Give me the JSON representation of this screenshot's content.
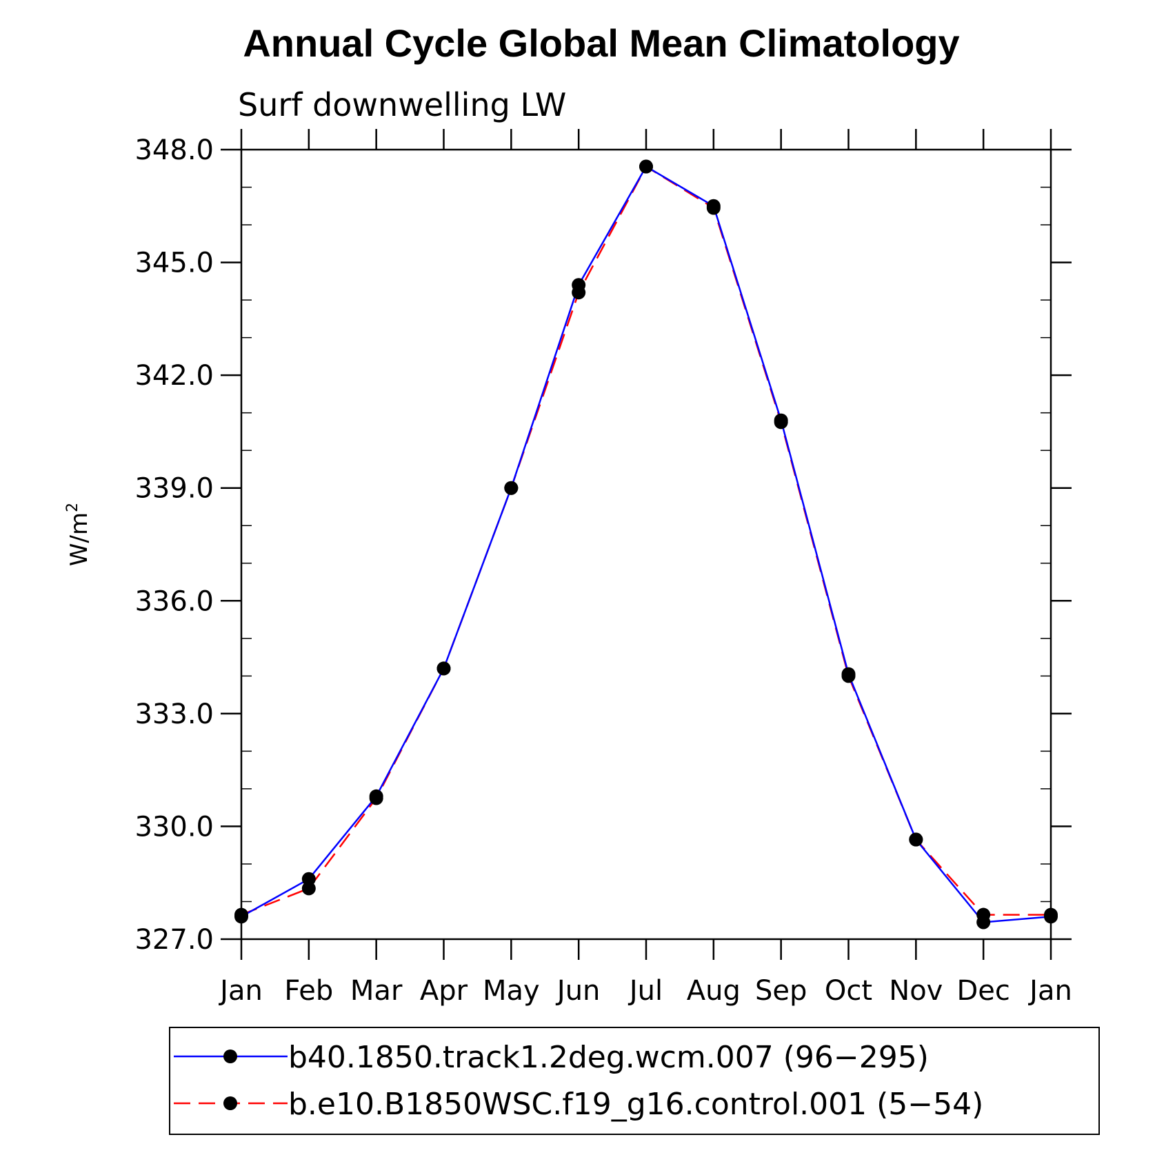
{
  "chart_data": {
    "type": "line",
    "title": "Annual Cycle Global Mean Climatology",
    "subtitle": "Surf downwelling LW",
    "ylabel": "W/m",
    "ylabel_superscript": "2",
    "xlabel": "",
    "categories": [
      "Jan",
      "Feb",
      "Mar",
      "Apr",
      "May",
      "Jun",
      "Jul",
      "Aug",
      "Sep",
      "Oct",
      "Nov",
      "Dec",
      "Jan"
    ],
    "ylim": [
      327.0,
      348.0
    ],
    "yticks": [
      "327.0",
      "330.0",
      "333.0",
      "336.0",
      "339.0",
      "342.0",
      "345.0",
      "348.0"
    ],
    "y_minor_step": 1.0,
    "grid": false,
    "legend_position": "bottom",
    "series": [
      {
        "name": "b40.1850.track1.2deg.wcm.007 (96−295)",
        "color": "#0000ff",
        "dash": "solid",
        "marker": "filled-circle",
        "values": [
          327.6,
          328.6,
          330.8,
          334.2,
          339.0,
          344.4,
          347.55,
          346.5,
          340.8,
          334.05,
          329.65,
          327.45,
          327.6
        ]
      },
      {
        "name": "b.e10.B1850WSC.f19_g16.control.001 (5−54)",
        "color": "#ff0000",
        "dash": "dashed",
        "marker": "filled-circle",
        "values": [
          327.65,
          328.35,
          330.75,
          334.2,
          339.0,
          344.2,
          347.55,
          346.45,
          340.75,
          334.0,
          329.65,
          327.65,
          327.65
        ]
      }
    ]
  }
}
